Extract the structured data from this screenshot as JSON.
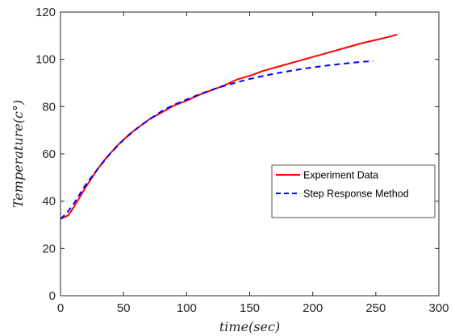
{
  "chart_data": {
    "type": "line",
    "title": "",
    "xlabel": "time(sec)",
    "ylabel": "Temperature(c°)",
    "xlim": [
      0,
      300
    ],
    "ylim": [
      0,
      120
    ],
    "xticks": [
      0,
      50,
      100,
      150,
      200,
      250,
      300
    ],
    "yticks": [
      0,
      20,
      40,
      60,
      80,
      100,
      120
    ],
    "grid": false,
    "legend_position": "right",
    "series": [
      {
        "name": "Experiment Data",
        "color": "#ff0000",
        "style": "solid",
        "x": [
          0,
          3,
          6,
          10,
          15,
          20,
          25,
          30,
          35,
          40,
          45,
          50,
          55,
          60,
          70,
          80,
          90,
          100,
          110,
          120,
          130,
          140,
          150,
          160,
          170,
          180,
          190,
          200,
          210,
          220,
          230,
          240,
          250,
          260,
          267
        ],
        "y": [
          32.5,
          33.2,
          34,
          37,
          41.5,
          46,
          50,
          54,
          57.5,
          60.5,
          63.5,
          66,
          68.5,
          70.5,
          74.5,
          77.5,
          80.5,
          82.5,
          85,
          87,
          89,
          91.5,
          93,
          95,
          96.5,
          98,
          99.5,
          101,
          102.5,
          104,
          105.5,
          107,
          108.2,
          109.5,
          110.5
        ]
      },
      {
        "name": "Step Response Method",
        "color": "#0000ff",
        "style": "dashed",
        "x": [
          0,
          5,
          10,
          20,
          30,
          40,
          50,
          60,
          70,
          80,
          90,
          100,
          110,
          120,
          130,
          140,
          150,
          160,
          170,
          180,
          190,
          200,
          210,
          220,
          230,
          240,
          248
        ],
        "y": [
          32.5,
          35,
          38.5,
          47,
          54,
          60.5,
          66,
          70.5,
          74.5,
          78,
          80.8,
          83,
          85.2,
          87.1,
          88.8,
          90.3,
          91.7,
          92.9,
          94,
          94.9,
          95.8,
          96.6,
          97.3,
          97.9,
          98.5,
          99,
          99.3
        ]
      }
    ]
  }
}
